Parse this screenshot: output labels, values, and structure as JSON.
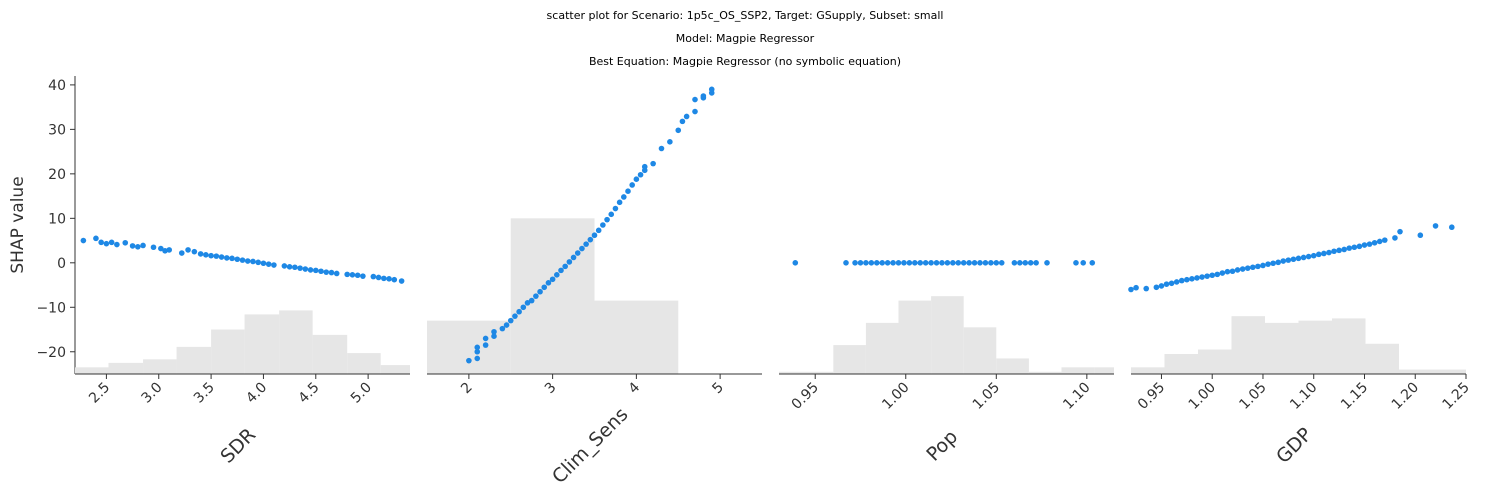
{
  "titles": {
    "line1": "scatter plot for Scenario: 1p5c_OS_SSP2, Target: GSupply, Subset: small",
    "line2": "Model: Magpie Regressor",
    "line3": "Best Equation: Magpie Regressor (no symbolic equation)"
  },
  "colors": {
    "point": "#1e88e5",
    "hist": "#e6e6e6",
    "axis": "#333333"
  },
  "chart_data": {
    "type": "scatter",
    "ylabel": "SHAP value",
    "ylim": [
      -25,
      42
    ],
    "yticks": [
      40,
      30,
      20,
      10,
      0,
      -10,
      -20
    ],
    "ytick_labels": [
      "40",
      "30",
      "20",
      "10",
      "0",
      "−10",
      "−20"
    ],
    "grid": false,
    "panels": [
      {
        "xlabel": "SDR",
        "xlim": [
          2.2,
          5.4
        ],
        "xticks": [
          2.5,
          3.0,
          3.5,
          4.0,
          4.5,
          5.0
        ],
        "xtick_labels": [
          "2.5",
          "3.0",
          "3.5",
          "4.0",
          "4.5",
          "5.0"
        ],
        "hist": [
          {
            "x0": 2.2,
            "x1": 2.52,
            "h": 1.5
          },
          {
            "x0": 2.52,
            "x1": 2.85,
            "h": 2.5
          },
          {
            "x0": 2.85,
            "x1": 3.17,
            "h": 3.3
          },
          {
            "x0": 3.17,
            "x1": 3.5,
            "h": 6.1
          },
          {
            "x0": 3.5,
            "x1": 3.82,
            "h": 10.0
          },
          {
            "x0": 3.82,
            "x1": 4.15,
            "h": 13.4
          },
          {
            "x0": 4.15,
            "x1": 4.47,
            "h": 14.3
          },
          {
            "x0": 4.47,
            "x1": 4.8,
            "h": 8.8
          },
          {
            "x0": 4.8,
            "x1": 5.12,
            "h": 4.7
          },
          {
            "x0": 5.12,
            "x1": 5.4,
            "h": 2.0
          }
        ],
        "points": {
          "x": [
            2.28,
            2.4,
            2.45,
            2.5,
            2.55,
            2.6,
            2.68,
            2.75,
            2.8,
            2.85,
            2.95,
            3.02,
            3.06,
            3.1,
            3.22,
            3.28,
            3.34,
            3.4,
            3.45,
            3.5,
            3.55,
            3.6,
            3.65,
            3.7,
            3.75,
            3.8,
            3.85,
            3.9,
            3.95,
            4.0,
            4.05,
            4.1,
            4.2,
            4.25,
            4.3,
            4.35,
            4.4,
            4.45,
            4.5,
            4.55,
            4.6,
            4.65,
            4.7,
            4.8,
            4.85,
            4.9,
            4.95,
            5.05,
            5.1,
            5.15,
            5.2,
            5.25,
            5.32
          ],
          "y": [
            5.0,
            5.5,
            4.6,
            4.3,
            4.6,
            4.1,
            4.5,
            3.8,
            3.6,
            3.9,
            3.5,
            3.2,
            2.7,
            2.9,
            2.2,
            2.9,
            2.5,
            2.0,
            1.8,
            1.6,
            1.5,
            1.3,
            1.1,
            1.0,
            0.8,
            0.6,
            0.4,
            0.3,
            0.1,
            -0.1,
            -0.3,
            -0.5,
            -0.7,
            -0.9,
            -1.0,
            -1.2,
            -1.4,
            -1.6,
            -1.7,
            -1.9,
            -2.1,
            -2.2,
            -2.4,
            -2.6,
            -2.7,
            -2.8,
            -3.0,
            -3.1,
            -3.3,
            -3.5,
            -3.6,
            -3.8,
            -4.1
          ]
        }
      },
      {
        "xlabel": "Clim_Sens",
        "xlim": [
          1.5,
          5.5
        ],
        "xticks": [
          2,
          3,
          4,
          5
        ],
        "xtick_labels": [
          "2",
          "3",
          "4",
          "5"
        ],
        "hist": [
          {
            "x0": 1.5,
            "x1": 2.5,
            "h": 12.0
          },
          {
            "x0": 2.5,
            "x1": 3.5,
            "h": 35.0
          },
          {
            "x0": 3.5,
            "x1": 4.5,
            "h": 16.5
          }
        ],
        "points": {
          "x": [
            2.0,
            2.1,
            2.1,
            2.1,
            2.2,
            2.2,
            2.3,
            2.3,
            2.4,
            2.45,
            2.5,
            2.55,
            2.6,
            2.65,
            2.7,
            2.75,
            2.8,
            2.85,
            2.9,
            2.95,
            3.0,
            3.05,
            3.1,
            3.15,
            3.2,
            3.25,
            3.3,
            3.35,
            3.4,
            3.45,
            3.5,
            3.55,
            3.6,
            3.65,
            3.7,
            3.75,
            3.8,
            3.85,
            3.9,
            3.95,
            4.0,
            4.05,
            4.1,
            4.1,
            4.2,
            4.3,
            4.4,
            4.5,
            4.55,
            4.6,
            4.7,
            4.7,
            4.8,
            4.8,
            4.9,
            4.9
          ],
          "y": [
            -22.0,
            -21.5,
            -20.0,
            -19.0,
            -18.5,
            -17.0,
            -16.5,
            -15.5,
            -14.8,
            -14.0,
            -13.0,
            -12.0,
            -11.0,
            -10.0,
            -9.0,
            -8.5,
            -7.5,
            -6.5,
            -5.5,
            -4.5,
            -3.7,
            -2.7,
            -1.7,
            -0.8,
            0.2,
            1.2,
            2.2,
            3.2,
            4.2,
            5.2,
            6.2,
            7.3,
            8.5,
            9.7,
            10.9,
            12.2,
            13.6,
            14.8,
            16.1,
            17.5,
            18.8,
            19.8,
            20.8,
            21.6,
            22.3,
            25.7,
            27.2,
            29.8,
            31.8,
            32.9,
            34.0,
            36.7,
            37.1,
            37.5,
            38.2,
            39.0
          ]
        }
      },
      {
        "xlabel": "Pop",
        "xlim": [
          0.93,
          1.115
        ],
        "xticks": [
          0.95,
          1.0,
          1.05,
          1.1
        ],
        "xtick_labels": [
          "0.95",
          "1.00",
          "1.05",
          "1.10"
        ],
        "hist": [
          {
            "x0": 0.93,
            "x1": 0.96,
            "h": 0.5
          },
          {
            "x0": 0.96,
            "x1": 0.978,
            "h": 6.5
          },
          {
            "x0": 0.978,
            "x1": 0.996,
            "h": 11.5
          },
          {
            "x0": 0.996,
            "x1": 1.014,
            "h": 16.5
          },
          {
            "x0": 1.014,
            "x1": 1.032,
            "h": 17.5
          },
          {
            "x0": 1.032,
            "x1": 1.05,
            "h": 10.5
          },
          {
            "x0": 1.05,
            "x1": 1.068,
            "h": 3.5
          },
          {
            "x0": 1.068,
            "x1": 1.086,
            "h": 0.5
          },
          {
            "x0": 1.086,
            "x1": 1.104,
            "h": 1.5
          },
          {
            "x0": 1.104,
            "x1": 1.115,
            "h": 1.5
          }
        ],
        "points": {
          "x": [
            0.939,
            0.967,
            0.972,
            0.975,
            0.978,
            0.981,
            0.984,
            0.987,
            0.99,
            0.993,
            0.996,
            0.999,
            1.002,
            1.005,
            1.008,
            1.011,
            1.014,
            1.017,
            1.02,
            1.023,
            1.026,
            1.029,
            1.032,
            1.035,
            1.038,
            1.041,
            1.044,
            1.047,
            1.05,
            1.053,
            1.06,
            1.063,
            1.066,
            1.069,
            1.072,
            1.078,
            1.094,
            1.098,
            1.103
          ],
          "y": [
            0,
            0,
            0,
            0,
            0,
            0,
            0,
            0,
            0,
            0,
            0,
            0,
            0,
            0,
            0,
            0,
            0,
            0,
            0,
            0,
            0,
            0,
            0,
            0,
            0,
            0,
            0,
            0,
            0,
            0,
            0,
            0,
            0,
            0,
            0,
            0,
            0,
            0,
            0
          ]
        }
      },
      {
        "xlabel": "GDP",
        "xlim": [
          0.92,
          1.25
        ],
        "xticks": [
          0.95,
          1.0,
          1.05,
          1.1,
          1.15,
          1.2,
          1.25
        ],
        "xtick_labels": [
          "0.95",
          "1.00",
          "1.05",
          "1.10",
          "1.15",
          "1.20",
          "1.25"
        ],
        "hist": [
          {
            "x0": 0.92,
            "x1": 0.953,
            "h": 1.5
          },
          {
            "x0": 0.953,
            "x1": 0.986,
            "h": 4.5
          },
          {
            "x0": 0.986,
            "x1": 1.019,
            "h": 5.5
          },
          {
            "x0": 1.019,
            "x1": 1.052,
            "h": 13.0
          },
          {
            "x0": 1.052,
            "x1": 1.085,
            "h": 11.5
          },
          {
            "x0": 1.085,
            "x1": 1.118,
            "h": 12.0
          },
          {
            "x0": 1.118,
            "x1": 1.151,
            "h": 12.5
          },
          {
            "x0": 1.151,
            "x1": 1.184,
            "h": 6.8
          },
          {
            "x0": 1.184,
            "x1": 1.25,
            "h": 1.0
          }
        ],
        "points": {
          "x": [
            0.92,
            0.925,
            0.935,
            0.945,
            0.95,
            0.955,
            0.96,
            0.965,
            0.97,
            0.975,
            0.98,
            0.985,
            0.99,
            0.995,
            1.0,
            1.005,
            1.01,
            1.015,
            1.02,
            1.025,
            1.03,
            1.035,
            1.04,
            1.045,
            1.05,
            1.055,
            1.06,
            1.065,
            1.07,
            1.075,
            1.08,
            1.085,
            1.09,
            1.095,
            1.1,
            1.105,
            1.11,
            1.115,
            1.12,
            1.125,
            1.13,
            1.135,
            1.14,
            1.145,
            1.15,
            1.155,
            1.16,
            1.165,
            1.17,
            1.18,
            1.185,
            1.205,
            1.22,
            1.236
          ],
          "y": [
            -6.0,
            -5.6,
            -5.8,
            -5.5,
            -5.2,
            -4.8,
            -4.6,
            -4.3,
            -4.0,
            -3.8,
            -3.6,
            -3.4,
            -3.2,
            -3.0,
            -2.8,
            -2.6,
            -2.3,
            -2.0,
            -1.9,
            -1.6,
            -1.4,
            -1.2,
            -1.0,
            -0.8,
            -0.6,
            -0.3,
            -0.1,
            0.1,
            0.4,
            0.6,
            0.8,
            1.0,
            1.2,
            1.4,
            1.6,
            1.9,
            2.1,
            2.3,
            2.6,
            2.8,
            3.0,
            3.3,
            3.5,
            3.7,
            4.0,
            4.2,
            4.5,
            4.8,
            5.1,
            5.6,
            7.0,
            6.2,
            8.3,
            8.0
          ]
        }
      }
    ]
  }
}
